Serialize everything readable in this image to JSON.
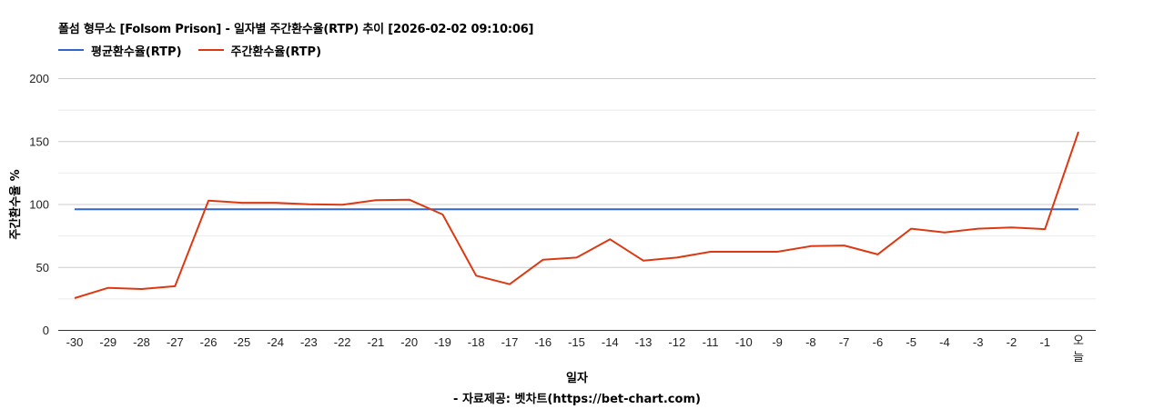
{
  "chart": {
    "title": "폴섬 형무소 [Folsom Prison] - 일자별 주간환수율(RTP) 추이 [2026-02-02 09:10:06]",
    "legend": [
      {
        "label": "평균환수율(RTP)",
        "color": "#3366cc"
      },
      {
        "label": "주간환수율(RTP)",
        "color": "#dc3912"
      }
    ],
    "ylabel": "주간환수율 %",
    "xlabel": "일자",
    "footer": "- 자료제공: 벳차트(https://bet-chart.com)"
  },
  "chart_data": {
    "type": "line",
    "title": "폴섬 형무소 [Folsom Prison] - 일자별 주간환수율(RTP) 추이 [2026-02-02 09:10:06]",
    "xlabel": "일자",
    "ylabel": "주간환수율 %",
    "ylim": [
      0,
      200
    ],
    "yticks": [
      0,
      50,
      100,
      150,
      200
    ],
    "grid": true,
    "minor_grid_step": 25,
    "legend_position": "top",
    "categories": [
      "-30",
      "-29",
      "-28",
      "-27",
      "-26",
      "-25",
      "-24",
      "-23",
      "-22",
      "-21",
      "-20",
      "-19",
      "-18",
      "-17",
      "-16",
      "-15",
      "-14",
      "-13",
      "-12",
      "-11",
      "-10",
      "-9",
      "-8",
      "-7",
      "-6",
      "-5",
      "-4",
      "-3",
      "-2",
      "-1",
      "오늘"
    ],
    "series": [
      {
        "name": "평균환수율(RTP)",
        "color": "#3366cc",
        "values": [
          95.8,
          95.8,
          95.8,
          95.8,
          95.8,
          95.8,
          95.8,
          95.8,
          95.8,
          95.8,
          95.8,
          95.8,
          95.8,
          95.8,
          95.8,
          95.8,
          95.8,
          95.8,
          95.8,
          95.8,
          95.8,
          95.8,
          95.8,
          95.8,
          95.8,
          95.8,
          95.8,
          95.8,
          95.8,
          95.8,
          95.8
        ]
      },
      {
        "name": "주간환수율(RTP)",
        "color": "#dc3912",
        "values": [
          25.3,
          33.4,
          32.5,
          34.7,
          102.7,
          101.0,
          101.0,
          99.8,
          99.4,
          103.0,
          103.5,
          91.7,
          43.1,
          36.3,
          55.8,
          57.5,
          72.0,
          55.0,
          57.5,
          62.1,
          62.1,
          62.1,
          66.6,
          67.1,
          60.0,
          80.4,
          77.5,
          80.4,
          81.4,
          80.1,
          157.4
        ]
      }
    ]
  }
}
